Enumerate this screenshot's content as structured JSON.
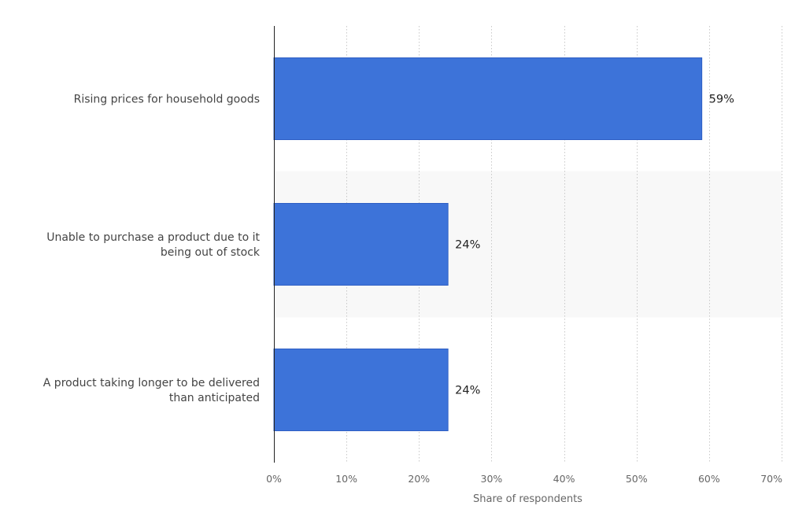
{
  "chart_data": {
    "type": "bar",
    "orientation": "horizontal",
    "categories": [
      [
        "Rising prices for household goods"
      ],
      [
        "Unable to purchase a product due to it",
        "being out of stock"
      ],
      [
        "A product taking longer to be delivered",
        "than anticipated"
      ]
    ],
    "values": [
      59,
      24,
      24
    ],
    "value_labels": [
      "59%",
      "24%",
      "24%"
    ],
    "xlabel": "Share of respondents",
    "ylabel": "",
    "xlim": [
      0,
      70
    ],
    "x_ticks": [
      0,
      10,
      20,
      30,
      40,
      50,
      60,
      70
    ],
    "x_tick_labels": [
      "0%",
      "10%",
      "20%",
      "30%",
      "40%",
      "50%",
      "60%",
      "70%"
    ],
    "grid": true,
    "bar_color": "#3d73d9",
    "bar_border_color": "#2f5fc4",
    "band_color": "#f8f8f8"
  }
}
